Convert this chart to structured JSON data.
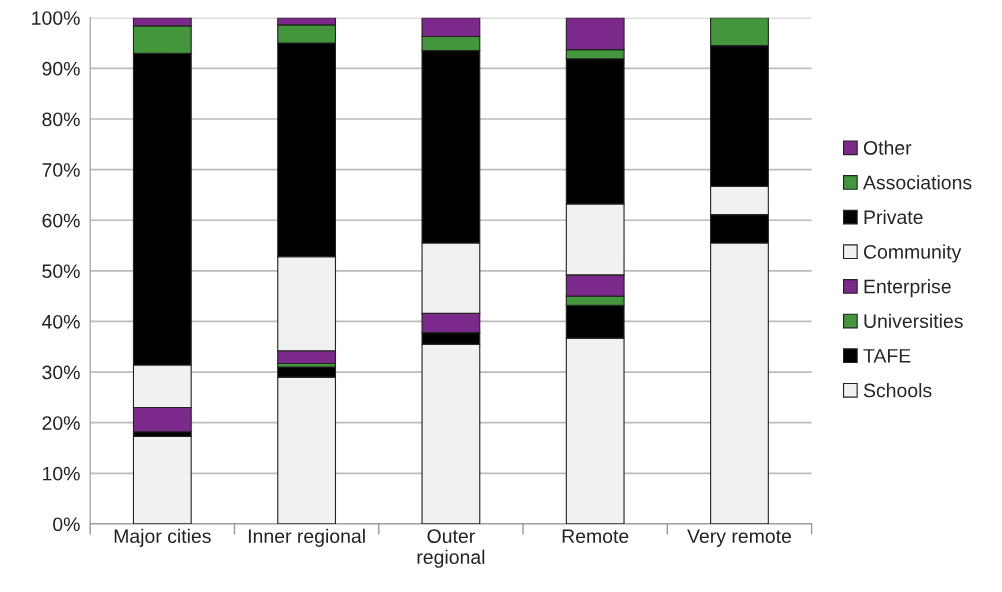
{
  "chart_data": {
    "type": "bar",
    "stacked": true,
    "categories": [
      "Major cities",
      "Inner regional",
      "Outer\nregional",
      "Remote",
      "Very remote"
    ],
    "series": [
      {
        "name": "Schools",
        "color": "#f0f1f0",
        "values": [
          17.3,
          29.0,
          35.5,
          36.7,
          55.5
        ]
      },
      {
        "name": "TAFE",
        "color": "#000000",
        "values": [
          0.9,
          2.0,
          2.3,
          6.5,
          5.6
        ]
      },
      {
        "name": "Universities",
        "color": "#43963c",
        "values": [
          null,
          0.7,
          null,
          1.8,
          null
        ]
      },
      {
        "name": "Enterprise",
        "color": "#7b2a8b",
        "values": [
          4.8,
          2.5,
          3.8,
          4.2,
          null
        ]
      },
      {
        "name": "Community",
        "color": "#f0f1f0",
        "values": [
          8.4,
          18.6,
          13.9,
          14.0,
          5.6
        ]
      },
      {
        "name": "Private",
        "color": "#000000",
        "values": [
          61.6,
          42.2,
          38.0,
          28.7,
          27.8
        ]
      },
      {
        "name": "Associations",
        "color": "#43963c",
        "values": [
          5.4,
          3.6,
          2.8,
          1.8,
          5.5
        ]
      },
      {
        "name": "Other",
        "color": "#7b2a8b",
        "values": [
          1.6,
          1.4,
          3.7,
          6.3,
          null
        ]
      }
    ],
    "ylim": [
      0,
      100
    ],
    "yticks": [
      {
        "value": 0,
        "label": "0%"
      },
      {
        "value": 10,
        "label": "10%"
      },
      {
        "value": 20,
        "label": "20%"
      },
      {
        "value": 30,
        "label": "30%"
      },
      {
        "value": 40,
        "label": "40%"
      },
      {
        "value": 50,
        "label": "50%"
      },
      {
        "value": 60,
        "label": "60%"
      },
      {
        "value": 70,
        "label": "70%"
      },
      {
        "value": 80,
        "label": "80%"
      },
      {
        "value": 90,
        "label": "90%"
      },
      {
        "value": 100,
        "label": "100%"
      }
    ],
    "grid": "y",
    "legend": "right"
  }
}
